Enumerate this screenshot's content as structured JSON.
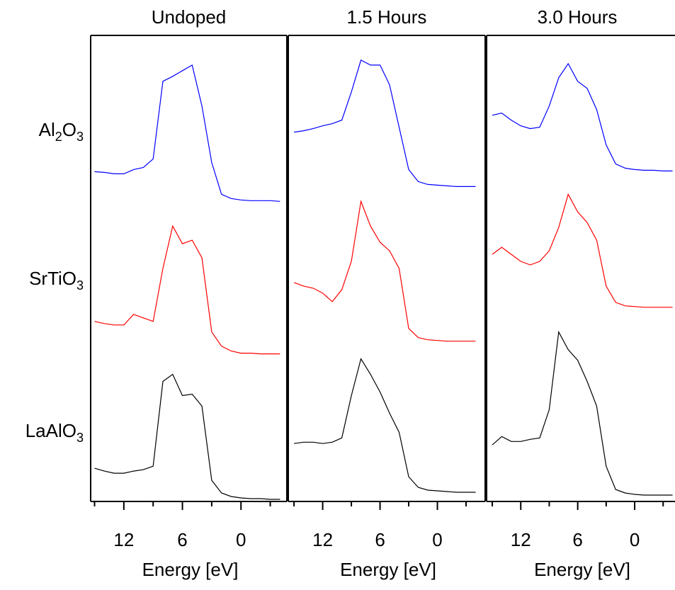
{
  "chart_data": [
    {
      "type": "line",
      "title": "Undoped",
      "xlabel": "Energy [eV]",
      "xlim": [
        15.4,
        -4.7
      ],
      "xticks": [
        12,
        6,
        0
      ],
      "xminorticks": [
        15,
        9,
        3,
        -3
      ],
      "ylim": [
        0,
        660
      ],
      "x": [
        15,
        14,
        13,
        12,
        11,
        10,
        9,
        8,
        7,
        6,
        5,
        4,
        3,
        2,
        1,
        0,
        -1,
        -2,
        -3,
        -4
      ],
      "series": [
        {
          "name": "Al2O3",
          "color": "#0000ff",
          "values": [
            467,
            466,
            464,
            464,
            470,
            473,
            485,
            595,
            602,
            610,
            618,
            560,
            480,
            435,
            429,
            427,
            426,
            426,
            426,
            425
          ]
        },
        {
          "name": "SrTiO3",
          "color": "#ff0000",
          "values": [
            255,
            252,
            250,
            250,
            265,
            260,
            255,
            330,
            390,
            365,
            370,
            345,
            240,
            220,
            213,
            210,
            210,
            209,
            209,
            209
          ]
        },
        {
          "name": "LaAlO3",
          "color": "#000000",
          "values": [
            47,
            43,
            40,
            40,
            43,
            45,
            50,
            170,
            180,
            150,
            152,
            135,
            30,
            12,
            7,
            5,
            4,
            4,
            3,
            3
          ]
        }
      ]
    },
    {
      "type": "line",
      "title": "1.5 Hours",
      "xlabel": "Energy [eV]",
      "xlim": [
        15.6,
        -5.0
      ],
      "xticks": [
        12,
        6,
        0
      ],
      "xminorticks": [
        15,
        9,
        3,
        -3
      ],
      "ylim": [
        0,
        660
      ],
      "x": [
        15,
        14,
        13,
        12,
        11,
        10,
        9,
        8,
        7,
        6,
        5,
        4,
        3,
        2,
        1,
        0,
        -1,
        -2,
        -3,
        -4
      ],
      "series": [
        {
          "color": "#0000ff",
          "values": [
            523,
            525,
            528,
            532,
            535,
            540,
            580,
            625,
            618,
            618,
            590,
            530,
            470,
            453,
            449,
            448,
            447,
            446,
            446,
            446
          ]
        },
        {
          "color": "#ff0000",
          "values": [
            310,
            305,
            302,
            295,
            283,
            300,
            340,
            425,
            390,
            367,
            355,
            330,
            245,
            232,
            229,
            228,
            227,
            227,
            227,
            227
          ]
        },
        {
          "color": "#000000",
          "values": [
            82,
            84,
            84,
            82,
            84,
            90,
            150,
            202,
            180,
            155,
            125,
            98,
            35,
            20,
            16,
            15,
            14,
            13,
            13,
            13
          ]
        }
      ]
    },
    {
      "type": "line",
      "title": "3.0 Hours",
      "xlabel": "Energy [eV]",
      "xlim": [
        15.6,
        -4.25
      ],
      "xticks": [
        12,
        6,
        0
      ],
      "xminorticks": [
        15,
        9,
        3,
        -3
      ],
      "ylim": [
        0,
        660
      ],
      "x": [
        15,
        14,
        13,
        12,
        11,
        10,
        9,
        8,
        7,
        6,
        5,
        4,
        3,
        2,
        1,
        0,
        -1,
        -2,
        -3,
        -4
      ],
      "series": [
        {
          "color": "#0000ff",
          "values": [
            547,
            550,
            540,
            532,
            528,
            530,
            560,
            600,
            620,
            595,
            585,
            555,
            505,
            478,
            472,
            470,
            469,
            469,
            468,
            468
          ]
        },
        {
          "color": "#ff0000",
          "values": [
            350,
            360,
            350,
            340,
            335,
            340,
            355,
            388,
            435,
            410,
            395,
            370,
            305,
            282,
            277,
            276,
            275,
            275,
            275,
            275
          ]
        },
        {
          "color": "#000000",
          "values": [
            80,
            92,
            85,
            85,
            88,
            90,
            130,
            240,
            215,
            200,
            170,
            135,
            50,
            17,
            12,
            10,
            9,
            9,
            9,
            9
          ]
        }
      ]
    }
  ]
}
